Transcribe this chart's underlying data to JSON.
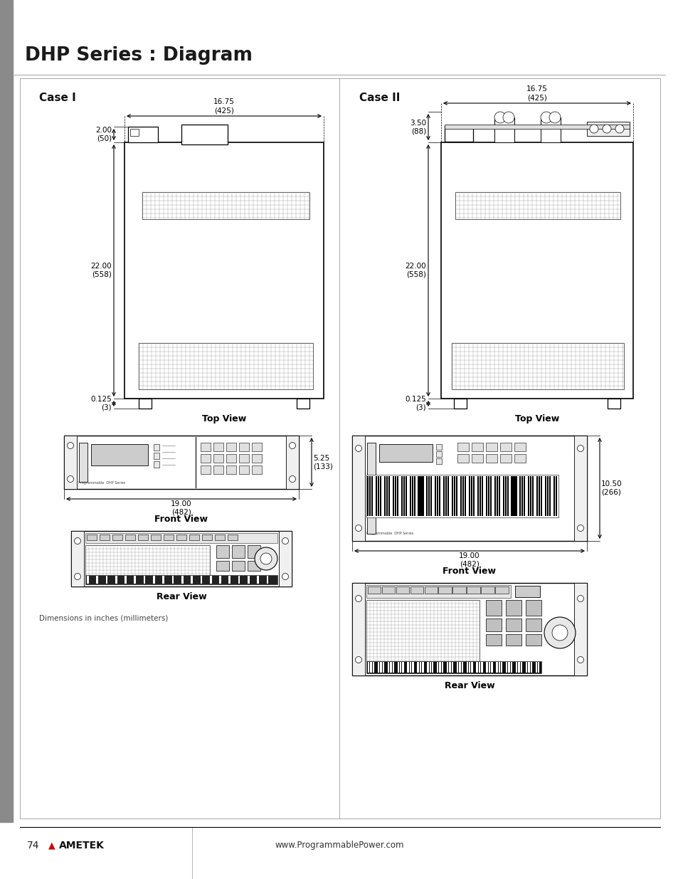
{
  "title": "DHP Series : Diagram",
  "page_bg": "#ffffff",
  "sidebar_color": "#8a8a8a",
  "case1_label": "Case I",
  "case2_label": "Case II",
  "footer_page": "74",
  "footer_url": "www.ProgrammablePower.com",
  "dim_note": "Dimensions in inches (millimeters)",
  "case1": {
    "top_width_label": "16.75\n(425)",
    "top_height_label": "2.00\n(50)",
    "side_height_label": "22.00\n(558)",
    "bottom_height_label": "0.125\n(3)",
    "front_width_label": "19.00\n(482)",
    "front_height_label": "5.25\n(133)",
    "top_view_label": "Top View",
    "front_view_label": "Front View",
    "rear_view_label": "Rear View"
  },
  "case2": {
    "top_width_label": "16.75\n(425)",
    "top_height_label": "3.50\n(88)",
    "side_height_label": "22.00\n(558)",
    "bottom_height_label": "0.125\n(3)",
    "front_width_label": "19.00\n(482)",
    "front_height_label": "10.50\n(266)",
    "top_view_label": "Top View",
    "front_view_label": "Front View",
    "rear_view_label": "Rear View"
  }
}
